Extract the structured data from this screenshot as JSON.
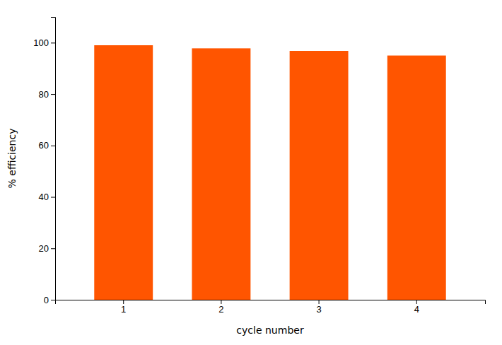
{
  "chart_data": {
    "type": "bar",
    "categories": [
      "1",
      "2",
      "3",
      "4"
    ],
    "values": [
      99.0,
      97.8,
      96.8,
      95.0
    ],
    "color": "#FF5500",
    "xlabel": "cycle number",
    "ylabel": "% efficiency",
    "ylim": [
      0,
      110
    ],
    "yticks": [
      0,
      20,
      40,
      60,
      80,
      100
    ],
    "grid": false
  }
}
